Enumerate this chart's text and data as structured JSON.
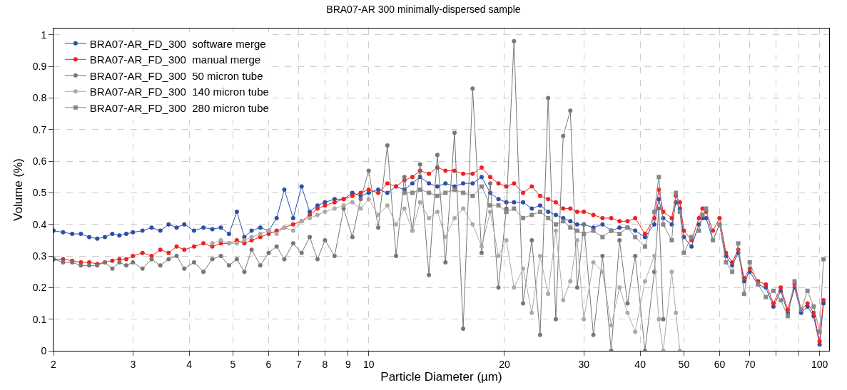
{
  "chart_data": {
    "type": "line",
    "title": "BRA07-AR 300 minimally-dispersed sample",
    "xlabel": "Particle Diameter (µm)",
    "ylabel": "Volume (%)",
    "log": "x",
    "grid": true,
    "legend": "top left",
    "marker": "circle",
    "line_style": "solid",
    "xlim": [
      2,
      105
    ],
    "ylim": [
      0,
      1.02
    ],
    "xticks": [
      2,
      3,
      4,
      5,
      6,
      7,
      8,
      9,
      10,
      20,
      30,
      40,
      50,
      60,
      70,
      {
        "value": 80,
        "label": null
      },
      {
        "value": 90,
        "label": null
      },
      100
    ],
    "yticks": [
      0,
      0.1,
      0.2,
      0.3,
      0.4,
      0.5,
      0.6,
      0.7,
      0.8,
      0.9,
      1
    ],
    "x": [
      2.0,
      2.1,
      2.2,
      2.3,
      2.4,
      2.5,
      2.6,
      2.7,
      2.8,
      2.9,
      3.0,
      3.15,
      3.3,
      3.45,
      3.6,
      3.75,
      3.9,
      4.1,
      4.3,
      4.5,
      4.7,
      4.9,
      5.1,
      5.3,
      5.5,
      5.75,
      6.0,
      6.25,
      6.5,
      6.8,
      7.1,
      7.4,
      7.7,
      8.0,
      8.4,
      8.8,
      9.2,
      9.6,
      10,
      10.5,
      11,
      11.5,
      12,
      12.5,
      13,
      13.6,
      14.2,
      14.8,
      15.5,
      16.2,
      17,
      17.8,
      18.6,
      19.4,
      20.2,
      21,
      22,
      23,
      24,
      25,
      26,
      27,
      28,
      29,
      30,
      31.5,
      33,
      34.5,
      36,
      37.5,
      39,
      41,
      43,
      44,
      45,
      47,
      48,
      49,
      50,
      52,
      54,
      55,
      56,
      58,
      60,
      62,
      64,
      66,
      68,
      70,
      73,
      76,
      79,
      82,
      85,
      88,
      91,
      94,
      97,
      100,
      102
    ],
    "series": [
      {
        "name": "BRA07-AR_FD_300  software merge",
        "color": "#2e4fa8",
        "values": [
          0.38,
          0.375,
          0.37,
          0.37,
          0.36,
          0.355,
          0.36,
          0.37,
          0.365,
          0.37,
          0.375,
          0.38,
          0.39,
          0.38,
          0.4,
          0.39,
          0.4,
          0.38,
          0.39,
          0.385,
          0.39,
          0.37,
          0.44,
          0.36,
          0.38,
          0.39,
          0.38,
          0.42,
          0.51,
          0.42,
          0.52,
          0.44,
          0.46,
          0.47,
          0.48,
          0.48,
          0.5,
          0.49,
          0.5,
          0.51,
          0.5,
          0.52,
          0.51,
          0.53,
          0.55,
          0.53,
          0.52,
          0.53,
          0.52,
          0.53,
          0.53,
          0.55,
          0.5,
          0.48,
          0.47,
          0.47,
          0.47,
          0.45,
          0.46,
          0.44,
          0.43,
          0.42,
          0.41,
          0.4,
          0.4,
          0.39,
          0.4,
          0.38,
          0.39,
          0.39,
          0.38,
          0.36,
          0.4,
          0.48,
          0.42,
          0.4,
          0.47,
          0.45,
          0.36,
          0.33,
          0.4,
          0.42,
          0.42,
          0.35,
          0.4,
          0.3,
          0.27,
          0.31,
          0.22,
          0.25,
          0.21,
          0.2,
          0.14,
          0.19,
          0.12,
          0.2,
          0.12,
          0.14,
          0.11,
          0.02,
          0.15
        ]
      },
      {
        "name": "BRA07-AR_FD_300  manual merge",
        "color": "#ee2222",
        "values": [
          0.29,
          0.29,
          0.285,
          0.28,
          0.28,
          0.275,
          0.28,
          0.285,
          0.29,
          0.29,
          0.3,
          0.31,
          0.3,
          0.32,
          0.31,
          0.33,
          0.32,
          0.33,
          0.34,
          0.33,
          0.34,
          0.34,
          0.35,
          0.34,
          0.35,
          0.36,
          0.37,
          0.38,
          0.39,
          0.4,
          0.41,
          0.43,
          0.45,
          0.46,
          0.47,
          0.48,
          0.49,
          0.5,
          0.51,
          0.5,
          0.53,
          0.52,
          0.54,
          0.55,
          0.57,
          0.56,
          0.58,
          0.57,
          0.57,
          0.56,
          0.56,
          0.58,
          0.55,
          0.53,
          0.52,
          0.53,
          0.5,
          0.52,
          0.49,
          0.48,
          0.47,
          0.45,
          0.45,
          0.44,
          0.44,
          0.43,
          0.42,
          0.42,
          0.41,
          0.41,
          0.42,
          0.37,
          0.42,
          0.51,
          0.44,
          0.42,
          0.49,
          0.47,
          0.38,
          0.35,
          0.42,
          0.45,
          0.44,
          0.38,
          0.42,
          0.31,
          0.28,
          0.32,
          0.23,
          0.26,
          0.22,
          0.21,
          0.15,
          0.2,
          0.13,
          0.21,
          0.13,
          0.15,
          0.12,
          0.03,
          0.16
        ]
      },
      {
        "name": "BRA07-AR_FD_300  50 micron tube",
        "color": "#777777",
        "values": [
          0.29,
          0.28,
          0.28,
          0.27,
          0.27,
          0.27,
          0.28,
          0.26,
          0.28,
          0.27,
          0.28,
          0.26,
          0.29,
          0.27,
          0.29,
          0.3,
          0.26,
          0.28,
          0.25,
          0.29,
          0.3,
          0.27,
          0.29,
          0.25,
          0.32,
          0.27,
          0.31,
          0.33,
          0.29,
          0.34,
          0.31,
          0.36,
          0.29,
          0.35,
          0.3,
          0.45,
          0.36,
          0.48,
          0.57,
          0.39,
          0.65,
          0.3,
          0.55,
          0.38,
          0.59,
          0.24,
          0.62,
          0.28,
          0.69,
          0.07,
          0.83,
          0.31,
          0.53,
          0.2,
          0.45,
          0.98,
          0.15,
          0.35,
          0.05,
          0.8,
          0.1,
          0.68,
          0.76,
          0.2,
          0.4,
          0.05,
          0.3,
          0.0,
          0.35,
          0.15,
          0.3,
          0.0,
          0.25,
          0.45,
          0.1,
          null,
          null,
          null,
          null,
          null,
          null,
          null,
          null,
          null,
          null,
          null,
          null,
          null,
          null,
          null,
          null,
          null,
          null,
          null,
          null,
          null,
          null,
          null,
          null,
          null,
          null
        ]
      },
      {
        "name": "BRA07-AR_FD_300  140 micron tube",
        "color": "#aaaaaa",
        "values": [
          null,
          null,
          null,
          null,
          null,
          null,
          null,
          null,
          null,
          null,
          null,
          null,
          null,
          null,
          null,
          null,
          null,
          null,
          null,
          0.34,
          0.35,
          0.34,
          0.34,
          0.35,
          0.36,
          0.37,
          0.38,
          0.37,
          0.39,
          0.38,
          0.41,
          0.42,
          0.43,
          0.44,
          0.45,
          0.46,
          0.47,
          0.45,
          0.48,
          0.43,
          0.46,
          0.4,
          0.45,
          0.38,
          0.47,
          0.42,
          0.44,
          0.36,
          0.42,
          0.45,
          0.4,
          0.33,
          0.44,
          0.3,
          0.35,
          0.2,
          0.26,
          0.12,
          0.3,
          0.18,
          0.38,
          0.16,
          0.22,
          0.35,
          0.1,
          0.28,
          0.25,
          0.08,
          0.2,
          0.12,
          0.06,
          0.22,
          0.3,
          0.1,
          0.0,
          0.25,
          0.12,
          0.0,
          null,
          null,
          null,
          null,
          null,
          null,
          null,
          null,
          null,
          null,
          null,
          null,
          null,
          null,
          null,
          null,
          null,
          null,
          null,
          null,
          null,
          null,
          null
        ]
      },
      {
        "name": "BRA07-AR_FD_300  280 micron tube",
        "color": "#888888",
        "marker": "square",
        "values": [
          null,
          null,
          null,
          null,
          null,
          null,
          null,
          null,
          null,
          null,
          null,
          null,
          null,
          null,
          null,
          null,
          null,
          null,
          null,
          null,
          null,
          null,
          null,
          null,
          null,
          null,
          null,
          null,
          null,
          null,
          null,
          null,
          null,
          null,
          null,
          null,
          null,
          null,
          null,
          null,
          null,
          null,
          0.5,
          0.5,
          0.51,
          0.5,
          0.49,
          0.5,
          0.51,
          0.5,
          0.49,
          0.52,
          0.46,
          0.46,
          0.44,
          0.45,
          0.42,
          0.43,
          0.44,
          0.42,
          0.4,
          0.41,
          0.39,
          0.38,
          0.37,
          0.38,
          0.36,
          0.38,
          0.37,
          0.39,
          0.36,
          0.33,
          0.44,
          0.55,
          0.4,
          0.35,
          0.5,
          0.44,
          0.31,
          0.36,
          0.38,
          0.43,
          0.45,
          0.35,
          0.4,
          0.28,
          0.25,
          0.34,
          0.18,
          0.28,
          0.21,
          0.17,
          0.19,
          0.16,
          0.11,
          0.22,
          0.13,
          0.19,
          0.14,
          0.06,
          0.29
        ]
      }
    ]
  }
}
